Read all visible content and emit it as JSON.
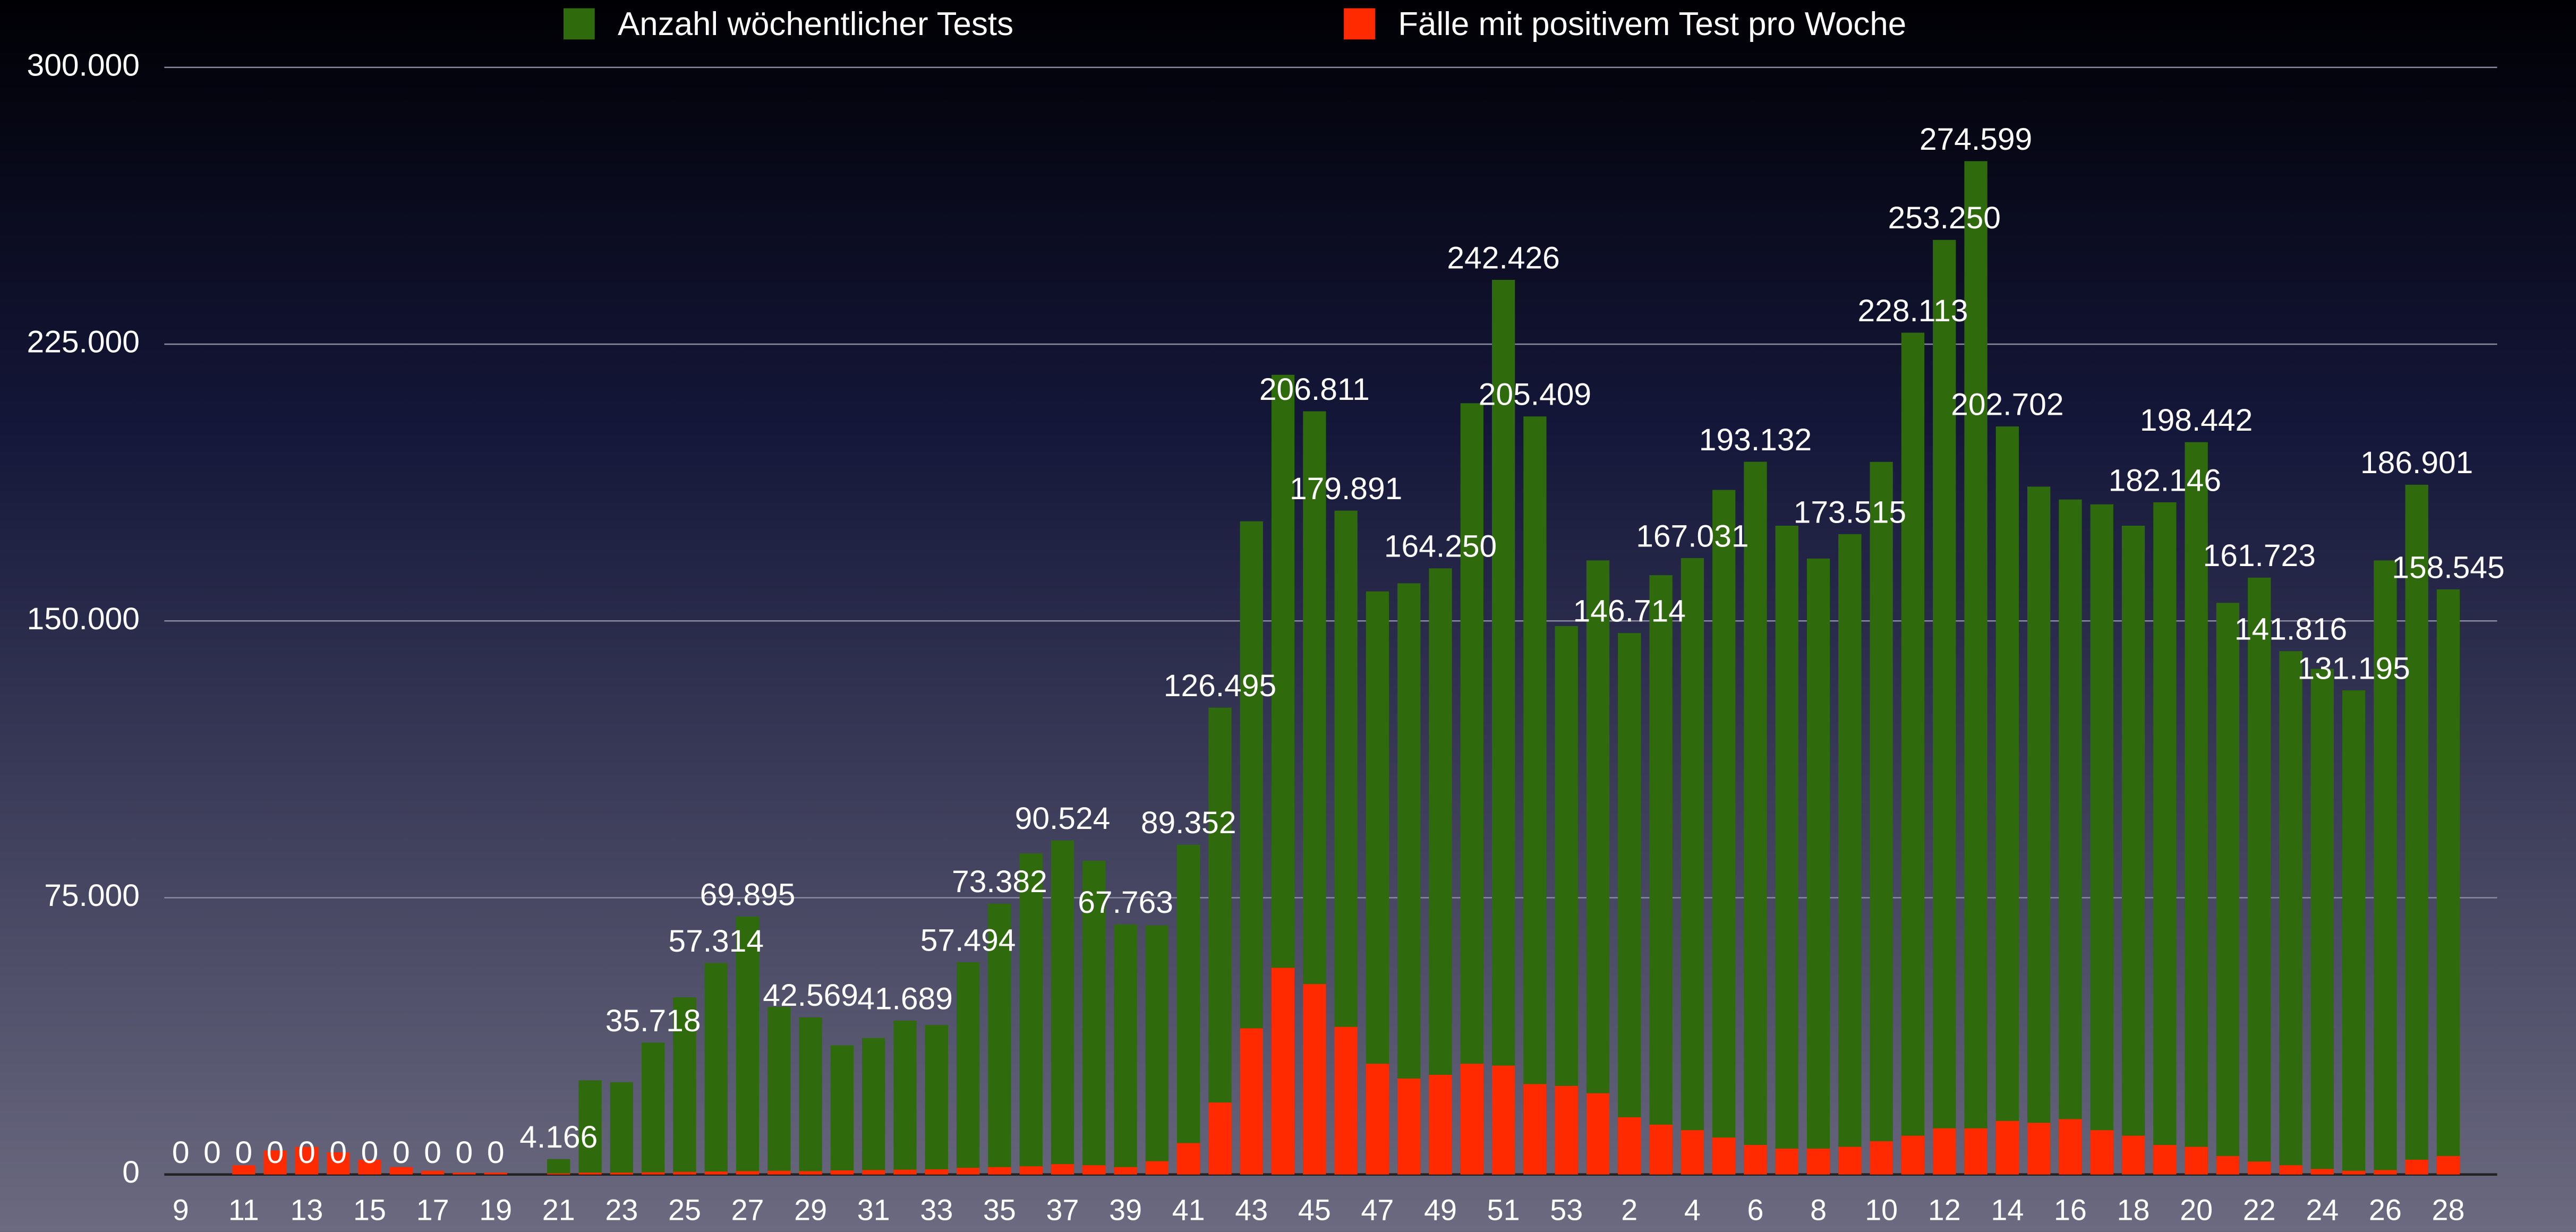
{
  "chart_data": {
    "type": "bar",
    "categories": [
      "9",
      null,
      "11",
      null,
      "13",
      null,
      "15",
      null,
      "17",
      null,
      "19",
      null,
      "21",
      null,
      "23",
      null,
      "25",
      null,
      "27",
      null,
      "29",
      null,
      "31",
      null,
      "33",
      null,
      "35",
      null,
      "37",
      null,
      "39",
      null,
      "41",
      null,
      "43",
      null,
      "45",
      null,
      "47",
      null,
      "49",
      null,
      "51",
      null,
      "53",
      null,
      "2",
      null,
      "4",
      null,
      "6",
      null,
      "8",
      null,
      "10",
      null,
      "12",
      null,
      "14",
      null,
      "16",
      null,
      "18",
      null,
      "20",
      null,
      "22",
      null,
      "24",
      null,
      "26",
      null,
      "28"
    ],
    "series": [
      {
        "name": "Anzahl wöchentlicher Tests",
        "color": "#2f6a0c",
        "values": [
          0,
          0,
          0,
          0,
          0,
          0,
          0,
          0,
          0,
          0,
          0,
          0,
          4166,
          25500,
          25000,
          35718,
          48000,
          57314,
          69895,
          45400,
          42569,
          35000,
          37000,
          41689,
          40500,
          57494,
          73382,
          87000,
          90524,
          85000,
          67763,
          67500,
          89352,
          126495,
          177000,
          216700,
          206811,
          179891,
          158000,
          160200,
          164250,
          209000,
          242426,
          205409,
          148600,
          166400,
          146714,
          162400,
          167031,
          185500,
          193132,
          175800,
          166900,
          173515,
          193100,
          228113,
          253250,
          274599,
          202702,
          186400,
          182900,
          181600,
          175800,
          182146,
          198442,
          154900,
          161723,
          141816,
          137000,
          131195,
          166400,
          186901,
          158545
        ],
        "value_labels": [
          "0",
          "0",
          "0",
          "0",
          "0",
          "0",
          "0",
          "0",
          "0",
          "0",
          "0",
          null,
          "4.166",
          null,
          null,
          "35.718",
          null,
          "57.314",
          "69.895",
          null,
          "42.569",
          null,
          null,
          "41.689",
          null,
          "57.494",
          "73.382",
          null,
          "90.524",
          null,
          "67.763",
          null,
          "89.352",
          "126.495",
          null,
          null,
          "206.811",
          "179.891",
          null,
          null,
          "164.250",
          null,
          "242.426",
          "205.409",
          null,
          null,
          "146.714",
          null,
          "167.031",
          null,
          "193.132",
          null,
          null,
          "173.515",
          null,
          "228.113",
          "253.250",
          "274.599",
          "202.702",
          null,
          null,
          null,
          null,
          "182.146",
          "198.442",
          null,
          "161.723",
          "141.816",
          null,
          "131.195",
          null,
          "186.901",
          "158.545"
        ]
      },
      {
        "name": "Fälle mit positivem Test pro Woche",
        "color": "#ff2a00",
        "values": [
          0,
          0,
          2500,
          6500,
          7500,
          6000,
          4000,
          2000,
          1000,
          500,
          500,
          0,
          300,
          500,
          500,
          600,
          700,
          800,
          900,
          1000,
          900,
          1100,
          1200,
          1300,
          1400,
          1800,
          2000,
          2200,
          2800,
          2500,
          2000,
          3600,
          8500,
          19500,
          39600,
          56000,
          51600,
          40000,
          30000,
          26000,
          27000,
          30000,
          29500,
          24500,
          24000,
          22000,
          15500,
          13500,
          12000,
          10000,
          8000,
          7000,
          7000,
          7500,
          9000,
          10500,
          12500,
          12500,
          14500,
          14000,
          15000,
          12000,
          10500,
          8000,
          7500,
          5000,
          3500,
          2500,
          1500,
          1000,
          1200,
          4000,
          5000
        ]
      }
    ],
    "ylim": [
      0,
      300000
    ],
    "yticks": [
      0,
      {
        "value": 75000,
        "label": "75.000"
      },
      {
        "value": 150000,
        "label": "150.000"
      },
      {
        "value": 225000,
        "label": "225.000"
      },
      {
        "value": 300000,
        "label": "300.000"
      }
    ],
    "grid": true
  }
}
